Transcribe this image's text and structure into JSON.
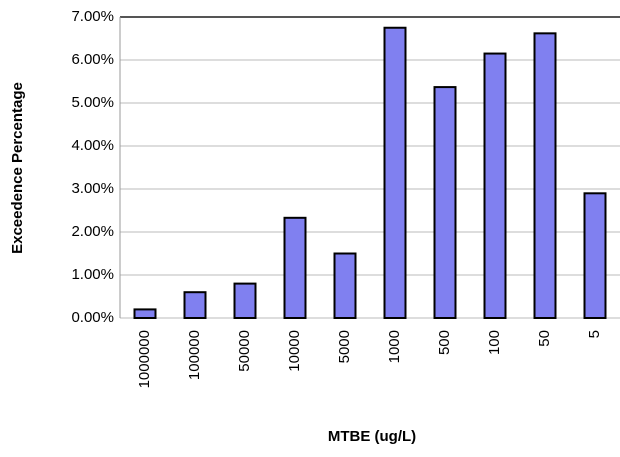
{
  "chart_data": {
    "type": "bar",
    "x_label": "MTBE (ug/L)",
    "y_label": "Exceedence Percentage",
    "categories": [
      "1000000",
      "100000",
      "50000",
      "10000",
      "5000",
      "1000",
      "500",
      "100",
      "50",
      "5"
    ],
    "values": [
      0.2,
      0.6,
      0.8,
      2.33,
      1.5,
      6.75,
      5.37,
      6.15,
      6.62,
      2.9
    ],
    "color": "#8080f0",
    "ylim": [
      0,
      7
    ],
    "yticks": [
      {
        "value": 0,
        "label": "0.00%"
      },
      {
        "value": 1,
        "label": "1.00%"
      },
      {
        "value": 2,
        "label": "2.00%"
      },
      {
        "value": 3,
        "label": "3.00%"
      },
      {
        "value": 4,
        "label": "4.00%"
      },
      {
        "value": 5,
        "label": "5.00%"
      },
      {
        "value": 6,
        "label": "6.00%"
      },
      {
        "value": 7,
        "label": "7.00%"
      }
    ],
    "grid": true
  }
}
